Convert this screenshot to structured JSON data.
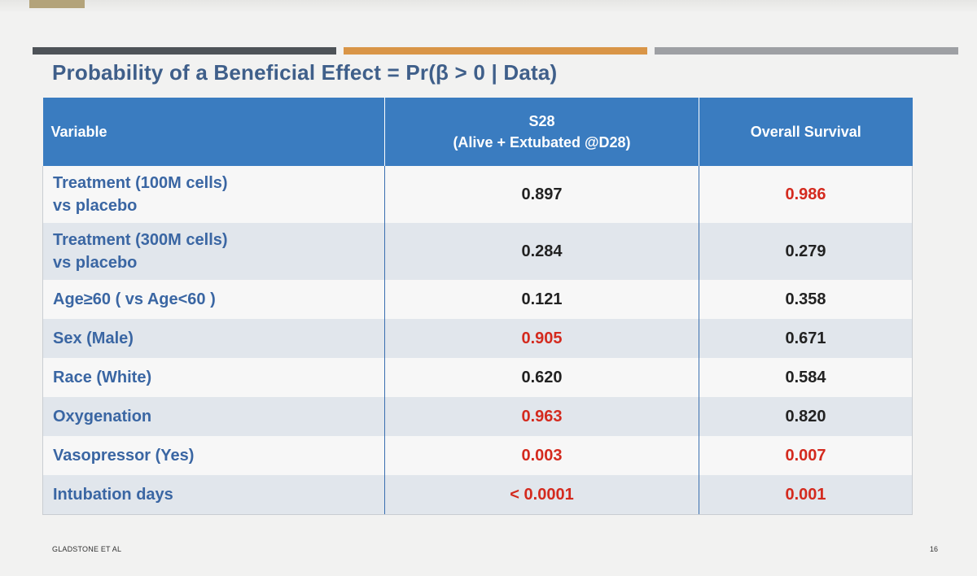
{
  "slide": {
    "title": "Probability of a Beneficial Effect = Pr(β > 0 | Data)",
    "footer_text": "GLADSTONE ET AL",
    "page_number": "16"
  },
  "colors": {
    "header_blue": "#3a7cc0",
    "label_blue": "#3a66a3",
    "highlight_red": "#d42a1e",
    "value_black": "#222222",
    "row_shade": "#e1e6ec",
    "accent_dark": "#4e5358",
    "accent_orange": "#d99547",
    "accent_gray": "#9ea0a4"
  },
  "table": {
    "headers": {
      "variable": "Variable",
      "s28_line1": "S28",
      "s28_line2": "(Alive + Extubated @D28)",
      "overall": "Overall Survival"
    },
    "rows": [
      {
        "label_line1": "Treatment (100M cells)",
        "label_line2": "vs placebo",
        "s28": "0.897",
        "s28_red": false,
        "os": "0.986",
        "os_red": true
      },
      {
        "label_line1": "Treatment (300M cells)",
        "label_line2": "vs placebo",
        "s28": "0.284",
        "s28_red": false,
        "os": "0.279",
        "os_red": false
      },
      {
        "label_line1": "Age≥60 ( vs Age<60 )",
        "s28": "0.121",
        "s28_red": false,
        "os": "0.358",
        "os_red": false
      },
      {
        "label_line1": "Sex (Male)",
        "s28": "0.905",
        "s28_red": true,
        "os": "0.671",
        "os_red": false
      },
      {
        "label_line1": "Race  (White)",
        "s28": "0.620",
        "s28_red": false,
        "os": "0.584",
        "os_red": false
      },
      {
        "label_line1": "Oxygenation",
        "s28": "0.963",
        "s28_red": true,
        "os": "0.820",
        "os_red": false
      },
      {
        "label_line1": "Vasopressor  (Yes)",
        "s28": "0.003",
        "s28_red": true,
        "os": "0.007",
        "os_red": true
      },
      {
        "label_line1": "Intubation days",
        "s28": "< 0.0001",
        "s28_red": true,
        "os": "0.001",
        "os_red": true
      }
    ]
  }
}
